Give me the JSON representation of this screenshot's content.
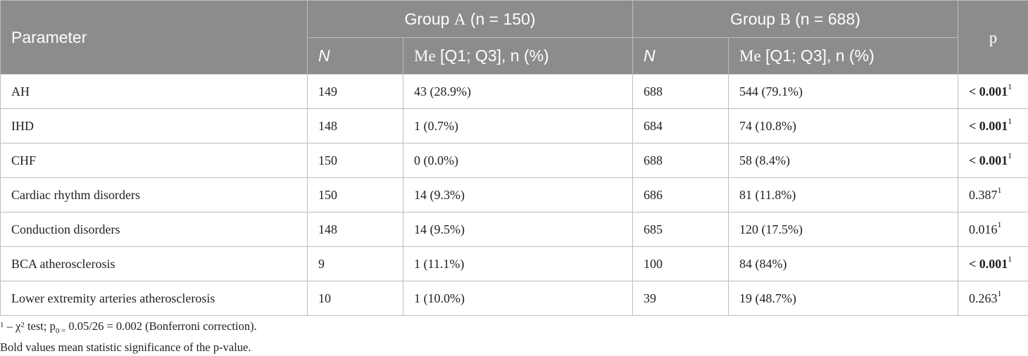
{
  "header": {
    "parameter": "Parameter",
    "group_a": {
      "prefix": "Group",
      "letter": "A",
      "suffix": " (n = 150)"
    },
    "group_b": {
      "prefix": "Group",
      "letter": "B",
      "suffix": " (n = 688)"
    },
    "p": "p",
    "n_label": "N",
    "me_prefix": "Me",
    "me_suffix": " [Q1; Q3], n (%)"
  },
  "rows": [
    {
      "parameter": "AH",
      "a_n": "149",
      "a_val": "43 (28.9%)",
      "b_n": "688",
      "b_val": "544 (79.1%)",
      "p": "< 0.001",
      "p_sup": "1",
      "bold": true
    },
    {
      "parameter": "IHD",
      "a_n": "148",
      "a_val": "1 (0.7%)",
      "b_n": "684",
      "b_val": "74 (10.8%)",
      "p": "< 0.001",
      "p_sup": "1",
      "bold": true
    },
    {
      "parameter": "CHF",
      "a_n": "150",
      "a_val": "0 (0.0%)",
      "b_n": "688",
      "b_val": "58 (8.4%)",
      "p": "< 0.001",
      "p_sup": "1",
      "bold": true
    },
    {
      "parameter": "Cardiac rhythm disorders",
      "a_n": "150",
      "a_val": "14 (9.3%)",
      "b_n": "686",
      "b_val": "81 (11.8%)",
      "p": "0.387",
      "p_sup": "1",
      "bold": false
    },
    {
      "parameter": "Conduction disorders",
      "a_n": "148",
      "a_val": "14 (9.5%)",
      "b_n": "685",
      "b_val": "120 (17.5%)",
      "p": "0.016",
      "p_sup": "1",
      "bold": false
    },
    {
      "parameter": "BCA atherosclerosis",
      "a_n": "9",
      "a_val": "1 (11.1%)",
      "b_n": "100",
      "b_val": "84 (84%)",
      "p": "< 0.001",
      "p_sup": "1",
      "bold": true
    },
    {
      "parameter": "Lower extremity arteries atherosclerosis",
      "a_n": "10",
      "a_val": "1 (10.0%)",
      "b_n": "39",
      "b_val": "19 (48.7%)",
      "p": "0.263",
      "p_sup": "1",
      "bold": false
    }
  ],
  "footnotes": {
    "line1": {
      "sup": "1",
      "a": " – χ",
      "chi_sup": "2",
      "b": " test; p",
      "sub": "0 =",
      "c": " 0.05/26 = 0.002 (Bonferroni correction)."
    },
    "line2": "Bold values mean statistic significance of the p-value."
  }
}
